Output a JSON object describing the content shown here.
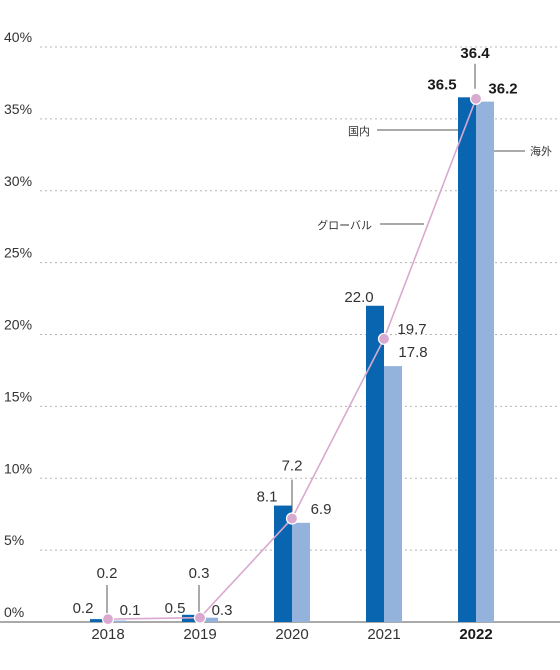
{
  "chart_data": {
    "type": "bar",
    "categories": [
      "2018",
      "2019",
      "2020",
      "2021",
      "2022"
    ],
    "y_ticks": [
      "0%",
      "5%",
      "10%",
      "15%",
      "20%",
      "25%",
      "30%",
      "35%",
      "40%"
    ],
    "ylim": [
      0,
      40
    ],
    "grid": true,
    "series": [
      {
        "name": "国内",
        "type": "bar",
        "color": "#0a65b0",
        "values": [
          0.2,
          0.5,
          8.1,
          22.0,
          36.5
        ],
        "labels": [
          "0.2",
          "0.5",
          "8.1",
          "22.0",
          "36.5"
        ]
      },
      {
        "name": "海外",
        "type": "bar",
        "color": "#94b3dc",
        "values": [
          0.1,
          0.3,
          6.9,
          17.8,
          36.2
        ],
        "labels": [
          "0.1",
          "0.3",
          "6.9",
          "17.8",
          "36.2"
        ]
      },
      {
        "name": "グローバル",
        "type": "line",
        "color": "#d9a9d0",
        "values": [
          0.2,
          0.3,
          7.2,
          19.7,
          36.4
        ],
        "labels": [
          "0.2",
          "0.3",
          "7.2",
          "19.7",
          "36.4"
        ]
      }
    ],
    "highlight_category": "2022"
  }
}
